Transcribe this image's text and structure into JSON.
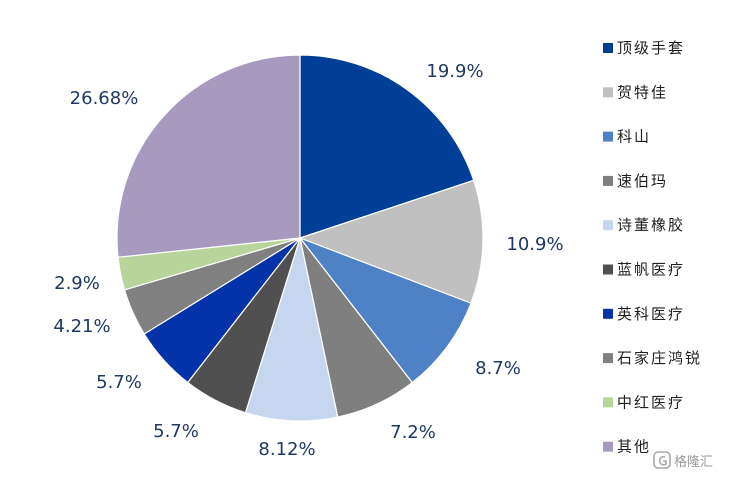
{
  "chart_data": {
    "type": "pie",
    "title": "",
    "slices": [
      {
        "name": "顶级手套",
        "value": 19.9,
        "label": "19.9%",
        "color": "#003F98"
      },
      {
        "name": "贺特佳",
        "value": 10.9,
        "label": "10.9%",
        "color": "#C0C0C0"
      },
      {
        "name": "科山",
        "value": 8.7,
        "label": "8.7%",
        "color": "#4F81C7"
      },
      {
        "name": "速伯玛",
        "value": 7.2,
        "label": "7.2%",
        "color": "#7F7F7F"
      },
      {
        "name": "诗董橡胶",
        "value": 8.12,
        "label": "8.12%",
        "color": "#C6D6EE"
      },
      {
        "name": "蓝帆医疗",
        "value": 5.7,
        "label": "5.7%",
        "color": "#505050"
      },
      {
        "name": "英科医疗",
        "value": 5.7,
        "label": "5.7%",
        "color": "#0432A8"
      },
      {
        "name": "石家庄鸿锐",
        "value": 4.21,
        "label": "4.21%",
        "color": "#808080"
      },
      {
        "name": "中红医疗",
        "value": 2.9,
        "label": "2.9%",
        "color": "#B8D49A"
      },
      {
        "name": "其他",
        "value": 26.68,
        "label": "26.68%",
        "color": "#A89ABF"
      }
    ],
    "legend_position": "right"
  },
  "watermark": {
    "text": "格隆汇",
    "icon": "glh-logo-icon"
  }
}
